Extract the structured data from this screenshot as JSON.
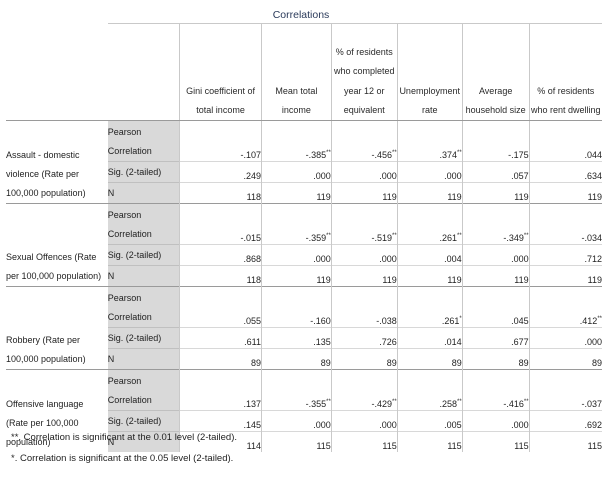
{
  "title": "Correlations",
  "columns": [
    "Gini coefficient of total income",
    "Mean total income",
    "% of residents who completed year 12 or equivalent",
    "Unemployment rate",
    "Average household size",
    "% of residents who rent dwelling"
  ],
  "stat_labels": {
    "pearson": "Pearson Correlation",
    "sig": "Sig. (2-tailed)",
    "n": "N"
  },
  "groups": [
    {
      "label": "Assault - domestic violence (Rate per 100,000 population)",
      "pearson": [
        {
          "v": "-.107",
          "s": ""
        },
        {
          "v": "-.385",
          "s": "**"
        },
        {
          "v": "-.456",
          "s": "**"
        },
        {
          "v": ".374",
          "s": "**"
        },
        {
          "v": "-.175",
          "s": ""
        },
        {
          "v": ".044",
          "s": ""
        }
      ],
      "sig": [
        ".249",
        ".000",
        ".000",
        ".000",
        ".057",
        ".634"
      ],
      "n": [
        "118",
        "119",
        "119",
        "119",
        "119",
        "119"
      ]
    },
    {
      "label": "Sexual Offences (Rate per 100,000 population)",
      "pearson": [
        {
          "v": "-.015",
          "s": ""
        },
        {
          "v": "-.359",
          "s": "**"
        },
        {
          "v": "-.519",
          "s": "**"
        },
        {
          "v": ".261",
          "s": "**"
        },
        {
          "v": "-.349",
          "s": "**"
        },
        {
          "v": "-.034",
          "s": ""
        }
      ],
      "sig": [
        ".868",
        ".000",
        ".000",
        ".004",
        ".000",
        ".712"
      ],
      "n": [
        "118",
        "119",
        "119",
        "119",
        "119",
        "119"
      ]
    },
    {
      "label": "Robbery (Rate per 100,000 population)",
      "pearson": [
        {
          "v": ".055",
          "s": ""
        },
        {
          "v": "-.160",
          "s": ""
        },
        {
          "v": "-.038",
          "s": ""
        },
        {
          "v": ".261",
          "s": "*"
        },
        {
          "v": ".045",
          "s": ""
        },
        {
          "v": ".412",
          "s": "**"
        }
      ],
      "sig": [
        ".611",
        ".135",
        ".726",
        ".014",
        ".677",
        ".000"
      ],
      "n": [
        "89",
        "89",
        "89",
        "89",
        "89",
        "89"
      ]
    },
    {
      "label": "Offensive language (Rate per 100,000 population)",
      "pearson": [
        {
          "v": ".137",
          "s": ""
        },
        {
          "v": "-.355",
          "s": "**"
        },
        {
          "v": "-.429",
          "s": "**"
        },
        {
          "v": ".258",
          "s": "**"
        },
        {
          "v": "-.416",
          "s": "**"
        },
        {
          "v": "-.037",
          "s": ""
        }
      ],
      "sig": [
        ".145",
        ".000",
        ".000",
        ".005",
        ".000",
        ".692"
      ],
      "n": [
        "114",
        "115",
        "115",
        "115",
        "115",
        "115"
      ]
    }
  ],
  "footnotes": [
    "**. Correlation is significant at the 0.01 level (2-tailed).",
    "*. Correlation is significant at the 0.05 level (2-tailed)."
  ]
}
